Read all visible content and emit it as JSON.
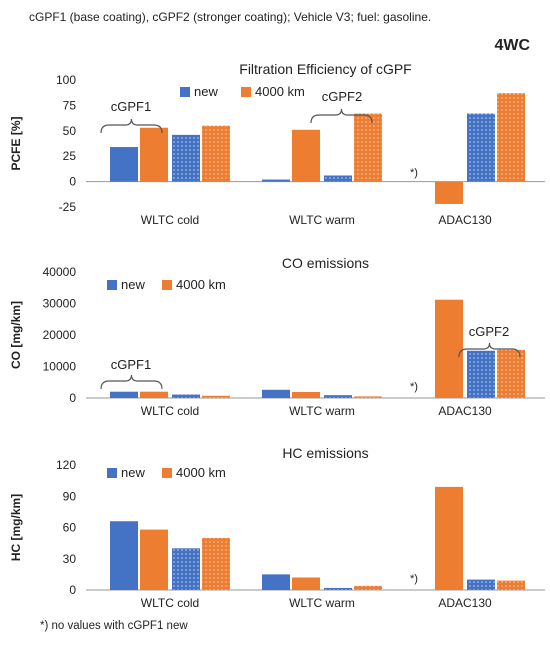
{
  "header": "cGPF1 (base coating), cGPF2 (stronger coating);  Vehicle V3;   fuel: gasoline.",
  "corner_tag": "4WC",
  "footnote": "*) no values with cGPF1 new",
  "colors": {
    "new": "#4472c4",
    "km4000": "#ed7d31",
    "axis": "#999999",
    "brace": "#555555"
  },
  "chart_data": [
    {
      "type": "bar",
      "title": "Filtration  Efficiency of cGPF",
      "ylabel": "PCFE [%]",
      "ylim": [
        -25,
        100
      ],
      "yticks": [
        "-25",
        "0",
        "25",
        "50",
        "75",
        "100"
      ],
      "categories": [
        "WLTC cold",
        "WLTC warm",
        "ADAC130"
      ],
      "legend": [
        "new",
        "4000 km"
      ],
      "series": [
        {
          "name": "cGPF1 new",
          "values": [
            34,
            2,
            null
          ]
        },
        {
          "name": "cGPF1 4000 km",
          "values": [
            53,
            51,
            -22
          ]
        },
        {
          "name": "cGPF2 new",
          "values": [
            46,
            6,
            67
          ]
        },
        {
          "name": "cGPF2 4000 km",
          "values": [
            55,
            67,
            87
          ]
        }
      ],
      "annotations": [
        "cGPF1",
        "cGPF2",
        "*)"
      ]
    },
    {
      "type": "bar",
      "title": "CO emissions",
      "ylabel": "CO [mg/km]",
      "ylim": [
        0,
        40000
      ],
      "yticks": [
        "0",
        "10000",
        "20000",
        "30000",
        "40000"
      ],
      "categories": [
        "WLTC cold",
        "WLTC warm",
        "ADAC130"
      ],
      "legend": [
        "new",
        "4000 km"
      ],
      "series": [
        {
          "name": "cGPF1 new",
          "values": [
            2000,
            2600,
            null
          ]
        },
        {
          "name": "cGPF1 4000 km",
          "values": [
            2000,
            1900,
            31200
          ]
        },
        {
          "name": "cGPF2 new",
          "values": [
            1100,
            900,
            15000
          ]
        },
        {
          "name": "cGPF2 4000 km",
          "values": [
            700,
            500,
            15300
          ]
        }
      ],
      "annotations": [
        "cGPF1",
        "cGPF2",
        "*)"
      ]
    },
    {
      "type": "bar",
      "title": "HC emissions",
      "ylabel": "HC [mg/km]",
      "ylim": [
        0,
        120
      ],
      "yticks": [
        "0",
        "30",
        "60",
        "90",
        "120"
      ],
      "categories": [
        "WLTC cold",
        "WLTC warm",
        "ADAC130"
      ],
      "legend": [
        "new",
        "4000 km"
      ],
      "series": [
        {
          "name": "cGPF1 new",
          "values": [
            66,
            15,
            null
          ]
        },
        {
          "name": "cGPF1 4000 km",
          "values": [
            58,
            12,
            99
          ]
        },
        {
          "name": "cGPF2 new",
          "values": [
            40,
            2,
            10
          ]
        },
        {
          "name": "cGPF2 4000 km",
          "values": [
            50,
            4,
            9
          ]
        }
      ],
      "annotations": [
        "*)"
      ]
    }
  ]
}
